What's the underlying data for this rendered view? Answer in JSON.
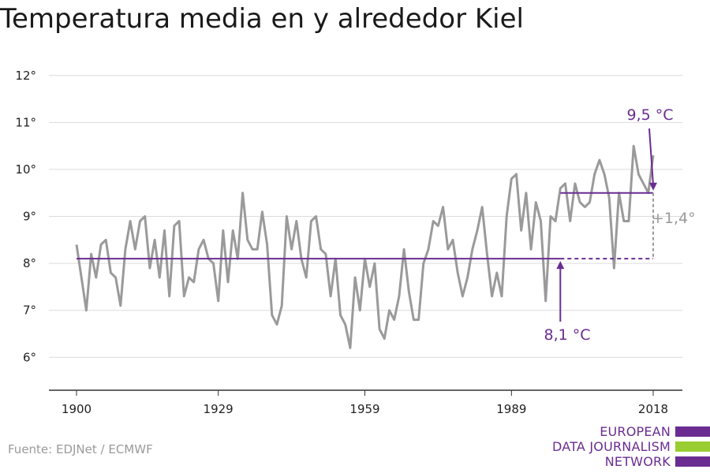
{
  "chart_data": {
    "type": "line",
    "title": "Temperatura media en y alrededor Kiel",
    "ylim": [
      5.3,
      12.6
    ],
    "xlim": [
      1900,
      2018
    ],
    "yticks": [
      {
        "value": 6,
        "label": "6°"
      },
      {
        "value": 7,
        "label": "7°"
      },
      {
        "value": 8,
        "label": "8°"
      },
      {
        "value": 9,
        "label": "9°"
      },
      {
        "value": 10,
        "label": "10°"
      },
      {
        "value": 11,
        "label": "11°"
      },
      {
        "value": 12,
        "label": "12°"
      }
    ],
    "xticks": [
      {
        "value": 1900,
        "label": "1900"
      },
      {
        "value": 1929,
        "label": "1929"
      },
      {
        "value": 1959,
        "label": "1959"
      },
      {
        "value": 1989,
        "label": "1989"
      },
      {
        "value": 2018,
        "label": "2018"
      }
    ],
    "grid": true,
    "series": [
      {
        "color": "#9a9a9a",
        "x": [
          1900,
          1901,
          1902,
          1903,
          1904,
          1905,
          1906,
          1907,
          1908,
          1909,
          1910,
          1911,
          1912,
          1913,
          1914,
          1915,
          1916,
          1917,
          1918,
          1919,
          1920,
          1921,
          1922,
          1923,
          1924,
          1925,
          1926,
          1927,
          1928,
          1929,
          1930,
          1931,
          1932,
          1933,
          1934,
          1935,
          1936,
          1937,
          1938,
          1939,
          1940,
          1941,
          1942,
          1943,
          1944,
          1945,
          1946,
          1947,
          1948,
          1949,
          1950,
          1951,
          1952,
          1953,
          1954,
          1955,
          1956,
          1957,
          1958,
          1959,
          1960,
          1961,
          1962,
          1963,
          1964,
          1965,
          1966,
          1967,
          1968,
          1969,
          1970,
          1971,
          1972,
          1973,
          1974,
          1975,
          1976,
          1977,
          1978,
          1979,
          1980,
          1981,
          1982,
          1983,
          1984,
          1985,
          1986,
          1987,
          1988,
          1989,
          1990,
          1991,
          1992,
          1993,
          1994,
          1995,
          1996,
          1997,
          1998,
          1999,
          2000,
          2001,
          2002,
          2003,
          2004,
          2005,
          2006,
          2007,
          2008,
          2009,
          2010,
          2011,
          2012,
          2013,
          2014,
          2015,
          2016,
          2017,
          2018
        ],
        "values": [
          8.4,
          7.7,
          7.0,
          8.2,
          7.7,
          8.4,
          8.5,
          7.8,
          7.7,
          7.1,
          8.3,
          8.9,
          8.3,
          8.9,
          9.0,
          7.9,
          8.5,
          7.7,
          8.7,
          7.3,
          8.8,
          8.9,
          7.3,
          7.7,
          7.6,
          8.3,
          8.5,
          8.1,
          8.0,
          7.2,
          8.7,
          7.6,
          8.7,
          8.1,
          9.5,
          8.5,
          8.3,
          8.3,
          9.1,
          8.4,
          6.9,
          6.7,
          7.1,
          9.0,
          8.3,
          8.9,
          8.1,
          7.7,
          8.9,
          9.0,
          8.3,
          8.2,
          7.3,
          8.1,
          6.9,
          6.7,
          6.2,
          7.7,
          7.0,
          8.1,
          7.5,
          8.0,
          6.6,
          6.4,
          7.0,
          6.8,
          7.3,
          8.3,
          7.4,
          6.8,
          6.8,
          8.0,
          8.3,
          8.9,
          8.8,
          9.2,
          8.3,
          8.5,
          7.8,
          7.3,
          7.7,
          8.3,
          8.7,
          9.2,
          8.2,
          7.3,
          7.8,
          7.3,
          9.0,
          9.8,
          9.9,
          8.7,
          9.5,
          8.3,
          9.3,
          8.9,
          7.2,
          9.0,
          8.9,
          9.6,
          9.7,
          8.9,
          9.7,
          9.3,
          9.2,
          9.3,
          9.9,
          10.2,
          9.9,
          9.4,
          7.9,
          9.5,
          8.9,
          8.9,
          10.5,
          9.9,
          9.7,
          9.5,
          10.3
        ]
      }
    ],
    "reference_lines": [
      {
        "value": 8.1,
        "label": "8,1 °C",
        "color": "#6a2c91"
      },
      {
        "value": 9.5,
        "label": "9,5 °C",
        "color": "#6a2c91"
      }
    ],
    "difference_label": "+1,4°"
  },
  "source": "Fuente: EDJNet / ECMWF",
  "logo": {
    "lines": [
      "EUROPEAN",
      "DATA JOURNALISM",
      "NETWORK"
    ],
    "colors": [
      "#6a2c91",
      "#9acd32",
      "#6a2c91"
    ]
  }
}
